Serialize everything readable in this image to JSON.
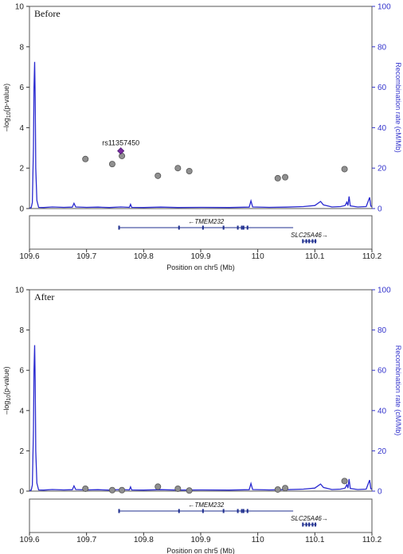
{
  "chart_data": [
    {
      "type": "scatter",
      "title": "Before",
      "xlabel": "Position on chr5 (Mb)",
      "ylabel_prefix": "–log",
      "ylabel_sub": "10",
      "ylabel_suffix": "(p-value)",
      "y2label": "Recombination rate (cM/Mb)",
      "xlim": [
        109.6,
        110.2
      ],
      "ylim": [
        0,
        10
      ],
      "y2lim": [
        0,
        100
      ],
      "xticks": [
        "109.6",
        "109.7",
        "109.8",
        "109.9",
        "110",
        "110.1",
        "110.2"
      ],
      "yticks": [
        "0",
        "2",
        "4",
        "6",
        "8",
        "10"
      ],
      "y2ticks": [
        "0",
        "20",
        "40",
        "60",
        "80",
        "100"
      ],
      "lead_snp": {
        "label": "rs11357450",
        "x": 109.76,
        "y": 2.85
      },
      "series": [
        {
          "points": [
            {
              "x": 109.698,
              "y": 2.45
            },
            {
              "x": 109.745,
              "y": 2.2
            },
            {
              "x": 109.762,
              "y": 2.6
            },
            {
              "x": 109.825,
              "y": 1.62
            },
            {
              "x": 109.86,
              "y": 2.0
            },
            {
              "x": 109.88,
              "y": 1.85
            },
            {
              "x": 110.035,
              "y": 1.5
            },
            {
              "x": 110.048,
              "y": 1.55
            },
            {
              "x": 110.152,
              "y": 1.95
            }
          ]
        }
      ],
      "recombination": [
        [
          109.6,
          0.2
        ],
        [
          109.603,
          0.5
        ],
        [
          109.605,
          3
        ],
        [
          109.607,
          30
        ],
        [
          109.608,
          60
        ],
        [
          109.609,
          72.5
        ],
        [
          109.61,
          55
        ],
        [
          109.611,
          20
        ],
        [
          109.613,
          4
        ],
        [
          109.616,
          0.6
        ],
        [
          109.625,
          0.5
        ],
        [
          109.64,
          0.8
        ],
        [
          109.66,
          0.6
        ],
        [
          109.675,
          0.7
        ],
        [
          109.678,
          2.6
        ],
        [
          109.681,
          0.8
        ],
        [
          109.7,
          0.6
        ],
        [
          109.72,
          0.7
        ],
        [
          109.74,
          0.5
        ],
        [
          109.76,
          0.8
        ],
        [
          109.775,
          0.6
        ],
        [
          109.777,
          2.1
        ],
        [
          109.779,
          0.6
        ],
        [
          109.8,
          0.5
        ],
        [
          109.83,
          0.7
        ],
        [
          109.86,
          0.5
        ],
        [
          109.9,
          0.6
        ],
        [
          109.95,
          0.5
        ],
        [
          109.985,
          0.7
        ],
        [
          109.988,
          3.8
        ],
        [
          109.991,
          0.8
        ],
        [
          110.02,
          0.6
        ],
        [
          110.05,
          0.7
        ],
        [
          110.08,
          1.0
        ],
        [
          110.1,
          1.5
        ],
        [
          110.11,
          3.5
        ],
        [
          110.115,
          1.8
        ],
        [
          110.13,
          0.8
        ],
        [
          110.145,
          1.0
        ],
        [
          110.153,
          1.5
        ],
        [
          110.156,
          3.2
        ],
        [
          110.158,
          1.5
        ],
        [
          110.16,
          6.0
        ],
        [
          110.162,
          1.3
        ],
        [
          110.175,
          0.8
        ],
        [
          110.19,
          1.0
        ],
        [
          110.196,
          5.5
        ],
        [
          110.198,
          1.2
        ],
        [
          110.2,
          0.9
        ]
      ],
      "genes": [
        {
          "name": "←TMEM232",
          "start": 109.757,
          "end": 110.062,
          "row": 0,
          "exons": [
            109.757,
            109.862,
            109.904,
            109.94,
            109.965,
            109.972,
            109.975,
            109.982
          ]
        },
        {
          "name": "SLC25A46→",
          "start": 110.078,
          "end": 110.103,
          "row": 1,
          "exons": [
            110.079,
            110.085,
            110.09,
            110.096,
            110.101
          ]
        }
      ]
    },
    {
      "type": "scatter",
      "title": "After",
      "xlabel": "Position on chr5 (Mb)",
      "ylabel_prefix": "–log",
      "ylabel_sub": "10",
      "ylabel_suffix": "(p-value)",
      "y2label": "Recombination rate (cM/Mb)",
      "xlim": [
        109.6,
        110.2
      ],
      "ylim": [
        0,
        10
      ],
      "y2lim": [
        0,
        100
      ],
      "xticks": [
        "109.6",
        "109.7",
        "109.8",
        "109.9",
        "110",
        "110.1",
        "110.2"
      ],
      "yticks": [
        "0",
        "2",
        "4",
        "6",
        "8",
        "10"
      ],
      "y2ticks": [
        "0",
        "20",
        "40",
        "60",
        "80",
        "100"
      ],
      "series": [
        {
          "points": [
            {
              "x": 109.698,
              "y": 0.12
            },
            {
              "x": 109.745,
              "y": 0.05
            },
            {
              "x": 109.762,
              "y": 0.05
            },
            {
              "x": 109.825,
              "y": 0.22
            },
            {
              "x": 109.86,
              "y": 0.12
            },
            {
              "x": 109.88,
              "y": 0.03
            },
            {
              "x": 110.035,
              "y": 0.08
            },
            {
              "x": 110.048,
              "y": 0.15
            },
            {
              "x": 110.152,
              "y": 0.5
            }
          ]
        }
      ],
      "recombination": [
        [
          109.6,
          0.2
        ],
        [
          109.603,
          0.5
        ],
        [
          109.605,
          3
        ],
        [
          109.607,
          30
        ],
        [
          109.608,
          60
        ],
        [
          109.609,
          72.5
        ],
        [
          109.61,
          55
        ],
        [
          109.611,
          20
        ],
        [
          109.613,
          4
        ],
        [
          109.616,
          0.6
        ],
        [
          109.625,
          0.5
        ],
        [
          109.64,
          0.8
        ],
        [
          109.66,
          0.6
        ],
        [
          109.675,
          0.7
        ],
        [
          109.678,
          2.6
        ],
        [
          109.681,
          0.8
        ],
        [
          109.7,
          0.6
        ],
        [
          109.72,
          0.7
        ],
        [
          109.74,
          0.5
        ],
        [
          109.76,
          0.8
        ],
        [
          109.775,
          0.6
        ],
        [
          109.777,
          2.1
        ],
        [
          109.779,
          0.6
        ],
        [
          109.8,
          0.5
        ],
        [
          109.83,
          0.7
        ],
        [
          109.86,
          0.5
        ],
        [
          109.9,
          0.6
        ],
        [
          109.95,
          0.5
        ],
        [
          109.985,
          0.7
        ],
        [
          109.988,
          3.8
        ],
        [
          109.991,
          0.8
        ],
        [
          110.02,
          0.6
        ],
        [
          110.05,
          0.7
        ],
        [
          110.08,
          1.0
        ],
        [
          110.1,
          1.5
        ],
        [
          110.11,
          3.5
        ],
        [
          110.115,
          1.8
        ],
        [
          110.13,
          0.8
        ],
        [
          110.145,
          1.0
        ],
        [
          110.153,
          1.5
        ],
        [
          110.156,
          3.2
        ],
        [
          110.158,
          1.5
        ],
        [
          110.16,
          6.0
        ],
        [
          110.162,
          1.3
        ],
        [
          110.175,
          0.8
        ],
        [
          110.19,
          1.0
        ],
        [
          110.196,
          5.5
        ],
        [
          110.198,
          1.2
        ],
        [
          110.2,
          0.9
        ]
      ],
      "genes": [
        {
          "name": "←TMEM232",
          "start": 109.757,
          "end": 110.062,
          "row": 0,
          "exons": [
            109.757,
            109.862,
            109.904,
            109.94,
            109.965,
            109.972,
            109.975,
            109.982
          ]
        },
        {
          "name": "SLC25A46→",
          "start": 110.078,
          "end": 110.103,
          "row": 1,
          "exons": [
            110.079,
            110.085,
            110.09,
            110.096,
            110.101
          ]
        }
      ]
    }
  ]
}
